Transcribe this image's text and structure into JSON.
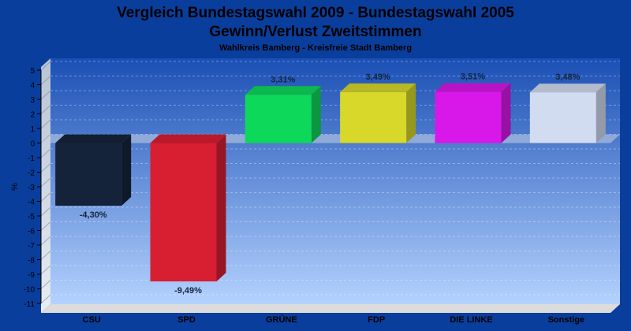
{
  "chart_data": {
    "type": "bar",
    "title": "Vergleich Bundestagswahl 2009 - Bundestagswahl 2005",
    "title_line2": "Gewinn/Verlust Zweitstimmen",
    "subtitle": "Wahlkreis Bamberg - Kreisfreie Stadt Bamberg",
    "ylabel": "%",
    "xlabel": "",
    "ylim": [
      -11,
      5
    ],
    "yticks": [
      5,
      4,
      3,
      2,
      1,
      0,
      -1,
      -2,
      -3,
      -4,
      -5,
      -6,
      -7,
      -8,
      -9,
      -10,
      -11
    ],
    "ytick_labels": [
      "5",
      "4",
      "3",
      "2",
      "1",
      "0",
      "-1",
      "-2",
      "-3",
      "-4",
      "-5",
      "-6",
      "-7",
      "-8",
      "-9",
      "-10",
      "-11"
    ],
    "grid": true,
    "categories": [
      "CSU",
      "SPD",
      "GRÜNE",
      "FDP",
      "DIE LINKE",
      "Sonstige"
    ],
    "values": [
      -4.3,
      -9.49,
      3.31,
      3.49,
      3.51,
      3.48
    ],
    "value_labels": [
      "-4,30%",
      "-9,49%",
      "3,31%",
      "3,49%",
      "3,51%",
      "3,48%"
    ],
    "colors": [
      "#15233a",
      "#d81f32",
      "#0ed85a",
      "#d8d82a",
      "#d818e8",
      "#d2dcf0"
    ]
  }
}
